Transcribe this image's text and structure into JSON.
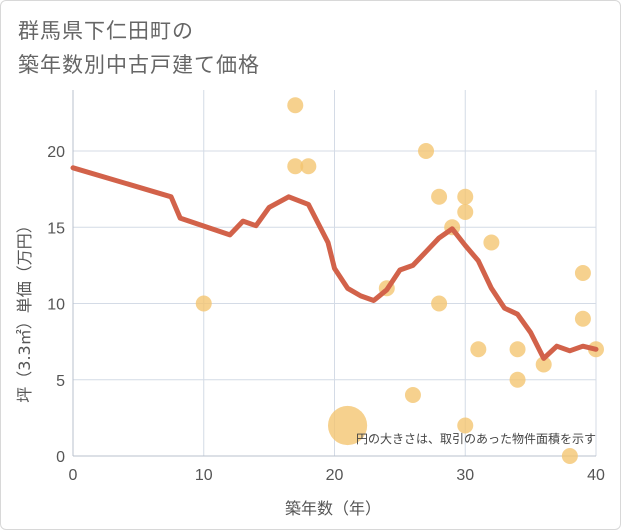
{
  "title": {
    "line1": "群馬県下仁田町の",
    "line2": "築年数別中古戸建て価格"
  },
  "chart_data": {
    "type": "scatter",
    "xlabel": "築年数（年）",
    "ylabel": "坪（3.3㎡）単価（万円）",
    "xlim": [
      0,
      40
    ],
    "ylim": [
      0,
      24
    ],
    "x_ticks": [
      "0",
      "10",
      "20",
      "30",
      "40"
    ],
    "y_ticks": [
      "0",
      "5",
      "10",
      "15",
      "20"
    ],
    "grid": true,
    "note": "円の大きさは、取引のあった物件面積を示す",
    "colors": {
      "points": "#f3c46e",
      "line": "#d2624a"
    },
    "scatter_series": {
      "points": [
        {
          "x": 10,
          "y": 10,
          "size": 1
        },
        {
          "x": 17,
          "y": 23,
          "size": 1
        },
        {
          "x": 17,
          "y": 19,
          "size": 1
        },
        {
          "x": 18,
          "y": 19,
          "size": 1
        },
        {
          "x": 21,
          "y": 2,
          "size": 6
        },
        {
          "x": 24,
          "y": 11,
          "size": 1
        },
        {
          "x": 26,
          "y": 4,
          "size": 1
        },
        {
          "x": 27,
          "y": 20,
          "size": 1
        },
        {
          "x": 28,
          "y": 17,
          "size": 1
        },
        {
          "x": 28,
          "y": 10,
          "size": 1
        },
        {
          "x": 29,
          "y": 15,
          "size": 1
        },
        {
          "x": 30,
          "y": 17,
          "size": 1
        },
        {
          "x": 30,
          "y": 16,
          "size": 1
        },
        {
          "x": 30,
          "y": 2,
          "size": 1
        },
        {
          "x": 31,
          "y": 7,
          "size": 1
        },
        {
          "x": 32,
          "y": 14,
          "size": 1
        },
        {
          "x": 34,
          "y": 7,
          "size": 1
        },
        {
          "x": 34,
          "y": 5,
          "size": 1
        },
        {
          "x": 36,
          "y": 6,
          "size": 1
        },
        {
          "x": 38,
          "y": 0,
          "size": 1
        },
        {
          "x": 39,
          "y": 12,
          "size": 1
        },
        {
          "x": 39,
          "y": 9,
          "size": 1
        },
        {
          "x": 40,
          "y": 7,
          "size": 1
        }
      ]
    },
    "line_series": {
      "x": [
        0,
        7.5,
        8.2,
        12,
        13,
        14,
        15,
        16.5,
        18,
        19.5,
        20,
        21,
        22,
        23,
        24,
        25,
        26,
        27,
        28,
        29,
        30,
        31,
        32,
        33,
        34,
        35,
        36,
        37,
        38,
        39,
        40
      ],
      "y": [
        18.9,
        17,
        15.6,
        14.5,
        15.4,
        15.1,
        16.3,
        17,
        16.5,
        14,
        12.3,
        11,
        10.5,
        10.2,
        10.9,
        12.2,
        12.5,
        13.4,
        14.3,
        14.9,
        13.8,
        12.8,
        11,
        9.7,
        9.3,
        8.1,
        6.4,
        7.2,
        6.9,
        7.2,
        7
      ]
    }
  }
}
